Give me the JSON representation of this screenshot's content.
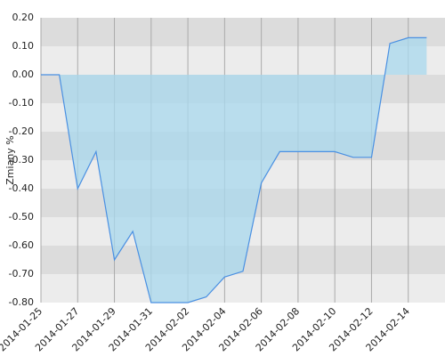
{
  "chart_data": {
    "type": "area",
    "y_label": "Zmiany %",
    "x": [
      "2014-01-25",
      "2014-01-26",
      "2014-01-27",
      "2014-01-28",
      "2014-01-29",
      "2014-01-30",
      "2014-01-31",
      "2014-02-01",
      "2014-02-02",
      "2014-02-03",
      "2014-02-04",
      "2014-02-05",
      "2014-02-06",
      "2014-02-07",
      "2014-02-08",
      "2014-02-09",
      "2014-02-10",
      "2014-02-11",
      "2014-02-12",
      "2014-02-13",
      "2014-02-14",
      "2014-02-15"
    ],
    "series": [
      {
        "color": "#4a90e2",
        "fill": "#a8d8ee",
        "values": [
          0.0,
          0.0,
          -0.4,
          -0.27,
          -0.65,
          -0.55,
          -0.8,
          -0.8,
          -0.8,
          -0.78,
          -0.71,
          -0.69,
          -0.38,
          -0.27,
          -0.27,
          -0.27,
          -0.27,
          -0.29,
          -0.29,
          0.11,
          0.13,
          0.13
        ]
      }
    ],
    "xlim": [
      "2014-01-25",
      "2014-02-16"
    ],
    "xticks": [
      "2014-01-25",
      "2014-01-27",
      "2014-01-29",
      "2014-01-31",
      "2014-02-02",
      "2014-02-04",
      "2014-02-06",
      "2014-02-08",
      "2014-02-10",
      "2014-02-12",
      "2014-02-14"
    ],
    "ylim": [
      -0.8,
      0.2
    ],
    "yticks": [
      {
        "value": -0.8,
        "label": "-0.80"
      },
      {
        "value": -0.7,
        "label": "-0.70"
      },
      {
        "value": -0.6,
        "label": "-0.60"
      },
      {
        "value": -0.5,
        "label": "-0.50"
      },
      {
        "value": -0.4,
        "label": "-0.40"
      },
      {
        "value": -0.3,
        "label": "-0.30"
      },
      {
        "value": -0.2,
        "label": "-0.20"
      },
      {
        "value": -0.1,
        "label": "-0.10"
      },
      {
        "value": 0,
        "label": "0.00"
      },
      {
        "value": 0.1,
        "label": "0.10"
      },
      {
        "value": 0.2,
        "label": "0.20"
      }
    ],
    "grid": true
  }
}
